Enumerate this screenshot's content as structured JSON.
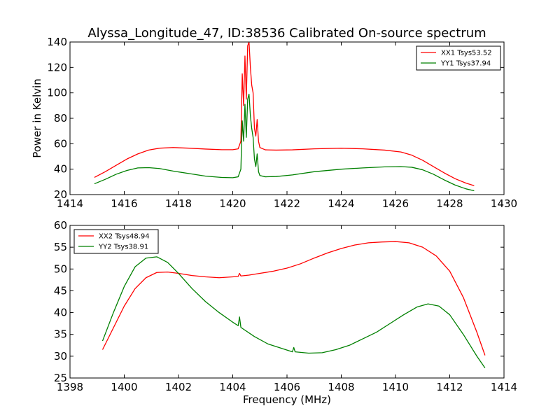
{
  "figure": {
    "title": "Alyssa_Longitude_47, ID:38536 Calibrated On-source spectrum",
    "xlabel": "Frequency (MHz)",
    "ylabel": "Power in Kelvin"
  },
  "chart_data": [
    {
      "type": "line",
      "xlim": [
        1414,
        1430
      ],
      "ylim": [
        20,
        140
      ],
      "xticks": [
        "1414",
        "1416",
        "1418",
        "1420",
        "1422",
        "1424",
        "1426",
        "1428",
        "1430"
      ],
      "yticks": [
        "20",
        "40",
        "60",
        "80",
        "100",
        "120",
        "140"
      ],
      "grid": false,
      "legend_position": "top-right",
      "series": [
        {
          "name": "XX1 Tsys53.52",
          "color": "#ff0000",
          "x": [
            1414.9,
            1415.3,
            1415.7,
            1416.1,
            1416.5,
            1416.9,
            1417.3,
            1417.8,
            1418.4,
            1419.0,
            1419.6,
            1420.0,
            1420.2,
            1420.3,
            1420.35,
            1420.4,
            1420.45,
            1420.5,
            1420.55,
            1420.6,
            1420.65,
            1420.7,
            1420.75,
            1420.8,
            1420.85,
            1420.9,
            1420.95,
            1421.0,
            1421.2,
            1421.6,
            1422.2,
            1423.0,
            1424.0,
            1424.8,
            1425.6,
            1426.2,
            1426.6,
            1427.0,
            1427.4,
            1427.8,
            1428.2,
            1428.6,
            1428.9
          ],
          "y": [
            33.5,
            38,
            43,
            48,
            52,
            55,
            56.5,
            57,
            56.5,
            55.8,
            55.3,
            55.3,
            56,
            62,
            115,
            90,
            129,
            95,
            137,
            140,
            120,
            106,
            100,
            72,
            66,
            79,
            62,
            57,
            55.2,
            55,
            55.2,
            56,
            56.5,
            56,
            55,
            53.5,
            51,
            47,
            42,
            37,
            32.5,
            29,
            27
          ]
        },
        {
          "name": "YY1 Tsys37.94",
          "color": "#008000",
          "x": [
            1414.9,
            1415.3,
            1415.7,
            1416.1,
            1416.5,
            1416.9,
            1417.3,
            1417.8,
            1418.4,
            1419.0,
            1419.6,
            1420.0,
            1420.2,
            1420.3,
            1420.35,
            1420.4,
            1420.45,
            1420.5,
            1420.55,
            1420.6,
            1420.65,
            1420.7,
            1420.75,
            1420.8,
            1420.85,
            1420.9,
            1420.95,
            1421.0,
            1421.2,
            1421.6,
            1422.2,
            1423.0,
            1424.0,
            1424.8,
            1425.6,
            1426.2,
            1426.6,
            1427.0,
            1427.4,
            1427.8,
            1428.2,
            1428.6,
            1428.9
          ],
          "y": [
            28.5,
            32,
            36,
            39,
            41,
            41.2,
            40.5,
            38.5,
            36.5,
            34.5,
            33.5,
            33.3,
            34,
            40,
            78,
            62,
            91,
            65,
            95,
            99,
            82,
            72,
            65,
            48,
            42,
            52,
            38,
            35,
            34,
            34.2,
            35.5,
            38,
            40,
            41,
            41.8,
            42,
            41.5,
            39.5,
            36,
            31.5,
            27.5,
            24.5,
            23
          ]
        }
      ]
    },
    {
      "type": "line",
      "xlim": [
        1398,
        1414
      ],
      "ylim": [
        25,
        60
      ],
      "xticks": [
        "1398",
        "1400",
        "1402",
        "1404",
        "1406",
        "1408",
        "1410",
        "1412",
        "1414"
      ],
      "yticks": [
        "25",
        "30",
        "35",
        "40",
        "45",
        "50",
        "55",
        "60"
      ],
      "grid": false,
      "legend_position": "top-left",
      "series": [
        {
          "name": "XX2 Tsys48.94",
          "color": "#ff0000",
          "x": [
            1399.2,
            1399.6,
            1400.0,
            1400.4,
            1400.8,
            1401.2,
            1401.6,
            1402.0,
            1402.5,
            1403.0,
            1403.5,
            1404.0,
            1404.2,
            1404.25,
            1404.3,
            1404.6,
            1405.0,
            1405.5,
            1406.0,
            1406.5,
            1407.0,
            1407.5,
            1408.0,
            1408.5,
            1409.0,
            1409.5,
            1410.0,
            1410.5,
            1411.0,
            1411.5,
            1412.0,
            1412.5,
            1413.0,
            1413.3
          ],
          "y": [
            31.5,
            36.5,
            41.5,
            45.5,
            48,
            49.2,
            49.3,
            49,
            48.5,
            48.2,
            48,
            48.2,
            48.3,
            49,
            48.4,
            48.6,
            49,
            49.5,
            50.2,
            51.2,
            52.5,
            53.7,
            54.7,
            55.5,
            56,
            56.2,
            56.3,
            56,
            55,
            53,
            49.5,
            43.5,
            35.5,
            30.2
          ]
        },
        {
          "name": "YY2 Tsys38.91",
          "color": "#008000",
          "x": [
            1399.2,
            1399.6,
            1400.0,
            1400.4,
            1400.8,
            1401.2,
            1401.6,
            1402.0,
            1402.5,
            1403.0,
            1403.5,
            1404.0,
            1404.2,
            1404.25,
            1404.3,
            1404.8,
            1405.3,
            1405.8,
            1406.2,
            1406.25,
            1406.3,
            1406.8,
            1407.3,
            1407.8,
            1408.3,
            1408.8,
            1409.3,
            1409.8,
            1410.3,
            1410.8,
            1411.2,
            1411.6,
            1412.0,
            1412.5,
            1413.0,
            1413.3
          ],
          "y": [
            33.5,
            40,
            46,
            50.5,
            52.5,
            52.8,
            51.5,
            49,
            45.5,
            42.5,
            40,
            37.8,
            37,
            39,
            36.6,
            34.5,
            32.8,
            31.8,
            31,
            32,
            31,
            30.7,
            30.8,
            31.5,
            32.5,
            34,
            35.5,
            37.5,
            39.5,
            41.3,
            42,
            41.5,
            39.5,
            35,
            30,
            27.3
          ]
        }
      ]
    }
  ]
}
